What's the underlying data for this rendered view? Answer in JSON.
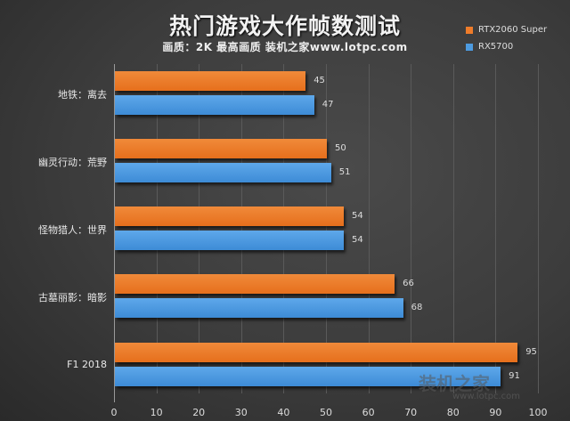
{
  "header": {
    "title": "热门游戏大作帧数测试",
    "subtitle": "画质：2K 最高画质 装机之家www.lotpc.com"
  },
  "legend": [
    {
      "label": "RTX2060 Super",
      "color": "#ef7c2a"
    },
    {
      "label": "RX5700",
      "color": "#4d9be0"
    }
  ],
  "watermark": {
    "text": "装机之家",
    "url_text": "www.lotpc.com"
  },
  "chart_data": {
    "type": "bar",
    "orientation": "horizontal",
    "title": "热门游戏大作帧数测试",
    "subtitle": "画质：2K 最高画质 装机之家www.lotpc.com",
    "categories": [
      "地铁：离去",
      "幽灵行动：荒野",
      "怪物猎人：世界",
      "古墓丽影：暗影",
      "F1 2018"
    ],
    "series": [
      {
        "name": "RTX2060 Super",
        "color": "#ef7c2a",
        "values": [
          45,
          50,
          54,
          66,
          95
        ]
      },
      {
        "name": "RX5700",
        "color": "#4d9be0",
        "values": [
          47,
          51,
          54,
          68,
          91
        ]
      }
    ],
    "xlabel": "",
    "ylabel": "",
    "xlim": [
      0,
      100
    ],
    "xticks": [
      "0",
      "10",
      "20",
      "30",
      "40",
      "50",
      "60",
      "70",
      "80",
      "90",
      "100"
    ],
    "grid": true,
    "legend_position": "top-right",
    "data_labels": true
  }
}
